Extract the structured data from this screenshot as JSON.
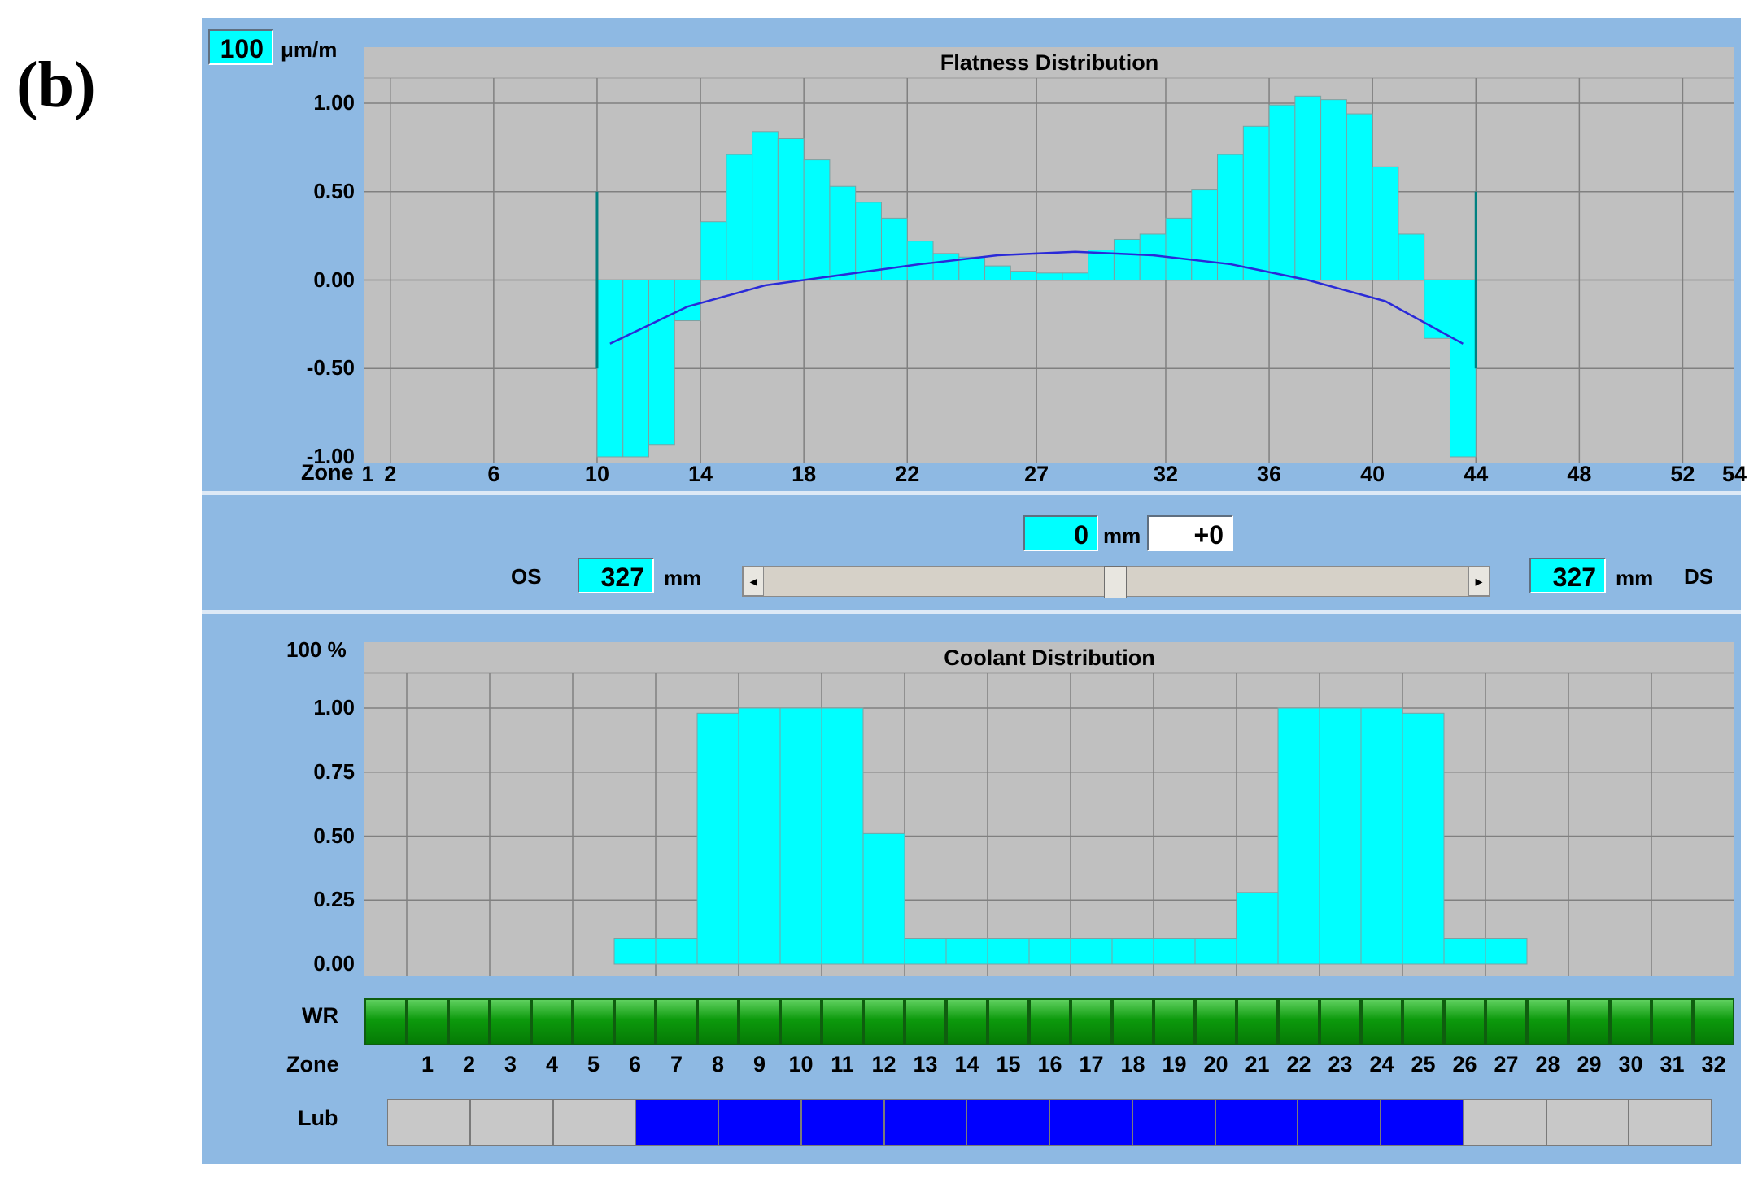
{
  "panel_label": "(b)",
  "header": {
    "scale_value": "100",
    "scale_unit": "μm/m"
  },
  "flatness": {
    "title": "Flatness Distribution",
    "y_ticks": [
      "1.00",
      "0.50",
      "0.00",
      "-0.50",
      "-1.00"
    ],
    "x_axis_label": "Zone",
    "x_ticks": [
      "1",
      "2",
      "6",
      "10",
      "14",
      "18",
      "22",
      "27",
      "32",
      "36",
      "40",
      "44",
      "48",
      "52",
      "54"
    ]
  },
  "controls": {
    "offset_value": "0",
    "offset_unit": "mm",
    "offset_delta": "+0",
    "os_label": "OS",
    "os_value": "327",
    "os_unit": "mm",
    "ds_label": "DS",
    "ds_value": "327",
    "ds_unit": "mm",
    "slider_left_arrow": "◂",
    "slider_right_arrow": "▸"
  },
  "coolant": {
    "title": "Coolant Distribution",
    "scale_label": "100 %",
    "y_ticks": [
      "1.00",
      "0.75",
      "0.50",
      "0.25",
      "0.00"
    ],
    "wr_label": "WR",
    "zone_label": "Zone",
    "zones": [
      "1",
      "2",
      "3",
      "4",
      "5",
      "6",
      "7",
      "8",
      "9",
      "10",
      "11",
      "12",
      "13",
      "14",
      "15",
      "16",
      "17",
      "18",
      "19",
      "20",
      "21",
      "22",
      "23",
      "24",
      "25",
      "26",
      "27",
      "28",
      "29",
      "30",
      "31",
      "32"
    ],
    "lub_label": "Lub"
  },
  "colors": {
    "bar": "#00ffff",
    "curve": "#2a2ad8",
    "plot_bg": "#c0c0c0",
    "window_bg": "#8eb9e3",
    "wr_green": "#0c9a0c",
    "lub_on": "#0000ff",
    "lub_off": "#c8c8c8"
  },
  "chart_data": [
    {
      "type": "bar",
      "title": "Flatness Distribution",
      "xlabel": "Zone",
      "ylim": [
        -1.0,
        1.0
      ],
      "x": [
        11,
        12,
        13,
        14,
        15,
        16,
        17,
        18,
        19,
        20,
        21,
        22,
        23,
        24,
        25,
        26,
        27,
        28,
        29,
        30,
        31,
        32,
        33,
        34,
        35,
        36,
        37,
        38,
        39,
        40,
        41,
        42,
        43,
        44
      ],
      "values": [
        -1.0,
        -1.0,
        -0.93,
        -0.23,
        0.33,
        0.71,
        0.84,
        0.8,
        0.68,
        0.53,
        0.44,
        0.35,
        0.22,
        0.15,
        0.13,
        0.08,
        0.05,
        0.04,
        0.04,
        0.17,
        0.23,
        0.26,
        0.35,
        0.51,
        0.71,
        0.87,
        0.99,
        1.04,
        1.02,
        0.94,
        0.64,
        0.26,
        -0.33,
        -1.0
      ],
      "curve": {
        "x": [
          11,
          14,
          17,
          20,
          23,
          26,
          29,
          32,
          35,
          38,
          41,
          44
        ],
        "values": [
          -0.36,
          -0.15,
          -0.03,
          0.03,
          0.09,
          0.14,
          0.16,
          0.14,
          0.09,
          0.0,
          -0.12,
          -0.36
        ]
      }
    },
    {
      "type": "bar",
      "title": "Coolant Distribution",
      "xlabel": "Zone",
      "ylim": [
        0,
        1.0
      ],
      "categories": [
        "1",
        "2",
        "3",
        "4",
        "5",
        "6",
        "7",
        "8",
        "9",
        "10",
        "11",
        "12",
        "13",
        "14",
        "15",
        "16",
        "17",
        "18",
        "19",
        "20",
        "21",
        "22",
        "23",
        "24",
        "25",
        "26",
        "27",
        "28",
        "29",
        "30",
        "31",
        "32"
      ],
      "values": [
        0,
        0,
        0,
        0,
        0,
        0.1,
        0.1,
        0.98,
        1.0,
        1.0,
        1.0,
        0.51,
        0.1,
        0.1,
        0.1,
        0.1,
        0.1,
        0.1,
        0.1,
        0.1,
        0.28,
        1.0,
        1.0,
        1.0,
        0.98,
        0.1,
        0.1,
        0,
        0,
        0,
        0,
        0
      ]
    }
  ],
  "lub": {
    "states": [
      0,
      0,
      0,
      1,
      1,
      1,
      1,
      1,
      1,
      1,
      1,
      1,
      1,
      0,
      0,
      0
    ]
  }
}
